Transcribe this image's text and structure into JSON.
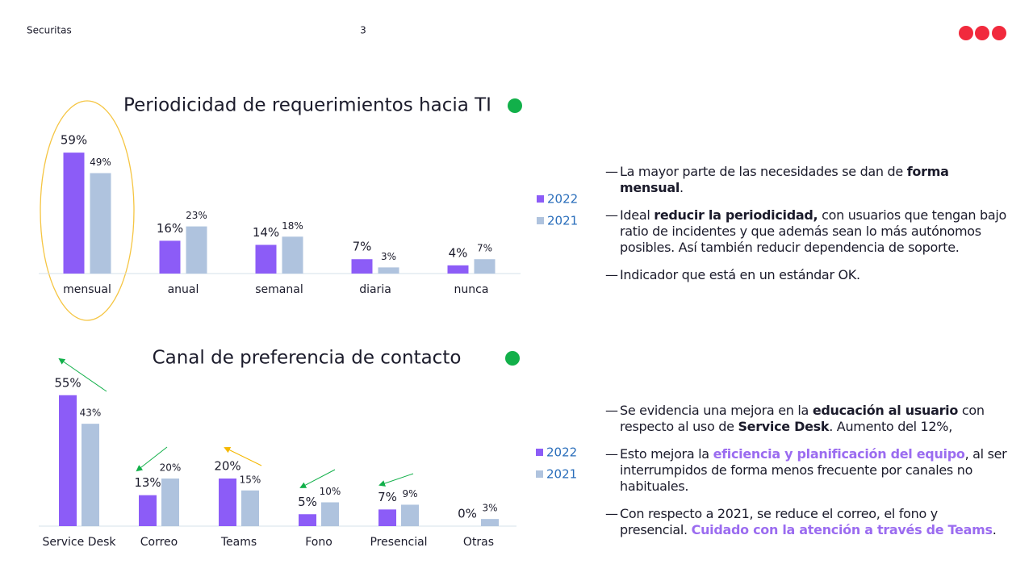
{
  "header": {
    "brand": "Securitas",
    "page": "3"
  },
  "chart_data": [
    {
      "type": "bar",
      "title": "Periodicidad de requerimientos hacia TI",
      "categories": [
        "mensual",
        "anual",
        "semanal",
        "diaria",
        "nunca"
      ],
      "series": [
        {
          "name": "2022",
          "color": "#8c5cf7",
          "values": [
            59,
            16,
            14,
            7,
            4
          ],
          "value_labels": [
            "59%",
            "16%",
            "14%",
            "7%",
            "4%"
          ]
        },
        {
          "name": "2021",
          "color": "#afc3de",
          "values": [
            49,
            23,
            18,
            3,
            7
          ],
          "value_labels": [
            "49%",
            "23%",
            "18%",
            "3%",
            "7%"
          ]
        }
      ]
    },
    {
      "type": "bar",
      "title": "Canal de preferencia de contacto",
      "categories": [
        "Service Desk",
        "Correo",
        "Teams",
        "Fono",
        "Presencial",
        "Otras"
      ],
      "series": [
        {
          "name": "2022",
          "color": "#8c5cf7",
          "values": [
            55,
            13,
            20,
            5,
            7,
            0
          ],
          "value_labels": [
            "55%",
            "13%",
            "20%",
            "5%",
            "7%",
            "0%"
          ]
        },
        {
          "name": "2021",
          "color": "#afc3de",
          "values": [
            43,
            20,
            15,
            10,
            9,
            3
          ],
          "value_labels": [
            "43%",
            "20%",
            "15%",
            "10%",
            "9%",
            "3%"
          ]
        }
      ]
    }
  ],
  "bullet": "—",
  "notes": [
    {
      "items": [
        [
          {
            "text": "La mayor parte de las necesidades se dan de "
          },
          {
            "text": "forma mensual",
            "bold": true
          },
          {
            "text": "."
          }
        ],
        [
          {
            "text": "Ideal "
          },
          {
            "text": "reducir la periodicidad,",
            "bold": true
          },
          {
            "text": " con usuarios que tengan bajo ratio de incidentes y que además sean lo más autónomos posibles. Así también reducir dependencia de soporte."
          }
        ],
        [
          {
            "text": "Indicador que está en un estándar OK."
          }
        ]
      ]
    },
    {
      "items": [
        [
          {
            "text": "Se evidencia una mejora en la "
          },
          {
            "text": "educación al usuario",
            "bold": true
          },
          {
            "text": " con respecto al uso de "
          },
          {
            "text": "Service Desk",
            "bold": true
          },
          {
            "text": ". Aumento del 12%,"
          }
        ],
        [
          {
            "text": "Esto mejora la "
          },
          {
            "text": "eficiencia y planificación del equipo",
            "highlight": true
          },
          {
            "text": ", al ser interrumpidos de forma menos frecuente por canales no habituales."
          }
        ],
        [
          {
            "text": "Con respecto a 2021, se reduce el correo, el fono y presencial. "
          },
          {
            "text": "Cuidado con la atención a través de Teams",
            "highlight": true
          },
          {
            "text": "."
          }
        ]
      ]
    }
  ]
}
